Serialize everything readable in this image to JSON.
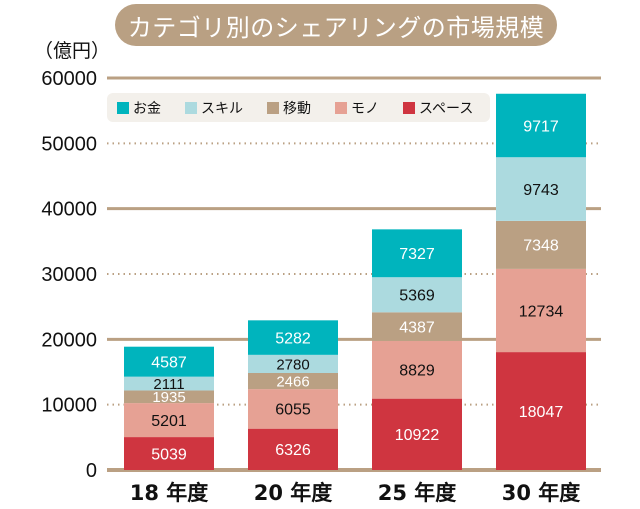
{
  "chart_data": {
    "type": "bar",
    "stacked": true,
    "title": "カテゴリ別のシェアリングの市場規模",
    "ylabel": "（億円）",
    "xlabel": "",
    "ylim": [
      0,
      60000
    ],
    "yticks": [
      0,
      10000,
      20000,
      30000,
      40000,
      50000,
      60000
    ],
    "ytick_labels": [
      "0",
      "10000",
      "20000",
      "30000",
      "40000",
      "50000",
      "60000"
    ],
    "grid": true,
    "grid_style": "solid at 0/20000/40000/60000, dotted at 10000/30000/50000",
    "legend_position": "top-left",
    "categories": [
      "18 年度",
      "20 年度",
      "25 年度",
      "30 年度"
    ],
    "series": [
      {
        "name": "スペース",
        "color": "#cf3540",
        "label_color": "#ffffff",
        "values": [
          5039,
          6326,
          10922,
          18047
        ]
      },
      {
        "name": "モノ",
        "color": "#e6a194",
        "label_color": "#111111",
        "values": [
          5201,
          6055,
          8829,
          12734
        ]
      },
      {
        "name": "移動",
        "color": "#baa083",
        "label_color": "#ffffff",
        "values": [
          1935,
          2466,
          4387,
          7348
        ]
      },
      {
        "name": "スキル",
        "color": "#acdadf",
        "label_color": "#111111",
        "values": [
          2111,
          2780,
          5369,
          9743
        ]
      },
      {
        "name": "お金",
        "color": "#00b4bd",
        "label_color": "#ffffff",
        "values": [
          4587,
          5282,
          7327,
          9717
        ]
      }
    ],
    "legend_order": [
      "お金",
      "スキル",
      "移動",
      "モノ",
      "スペース"
    ]
  },
  "colors": {
    "title_bg": "#b9a083",
    "grid": "#baa083",
    "legend_bg": "#f3f0eb"
  }
}
